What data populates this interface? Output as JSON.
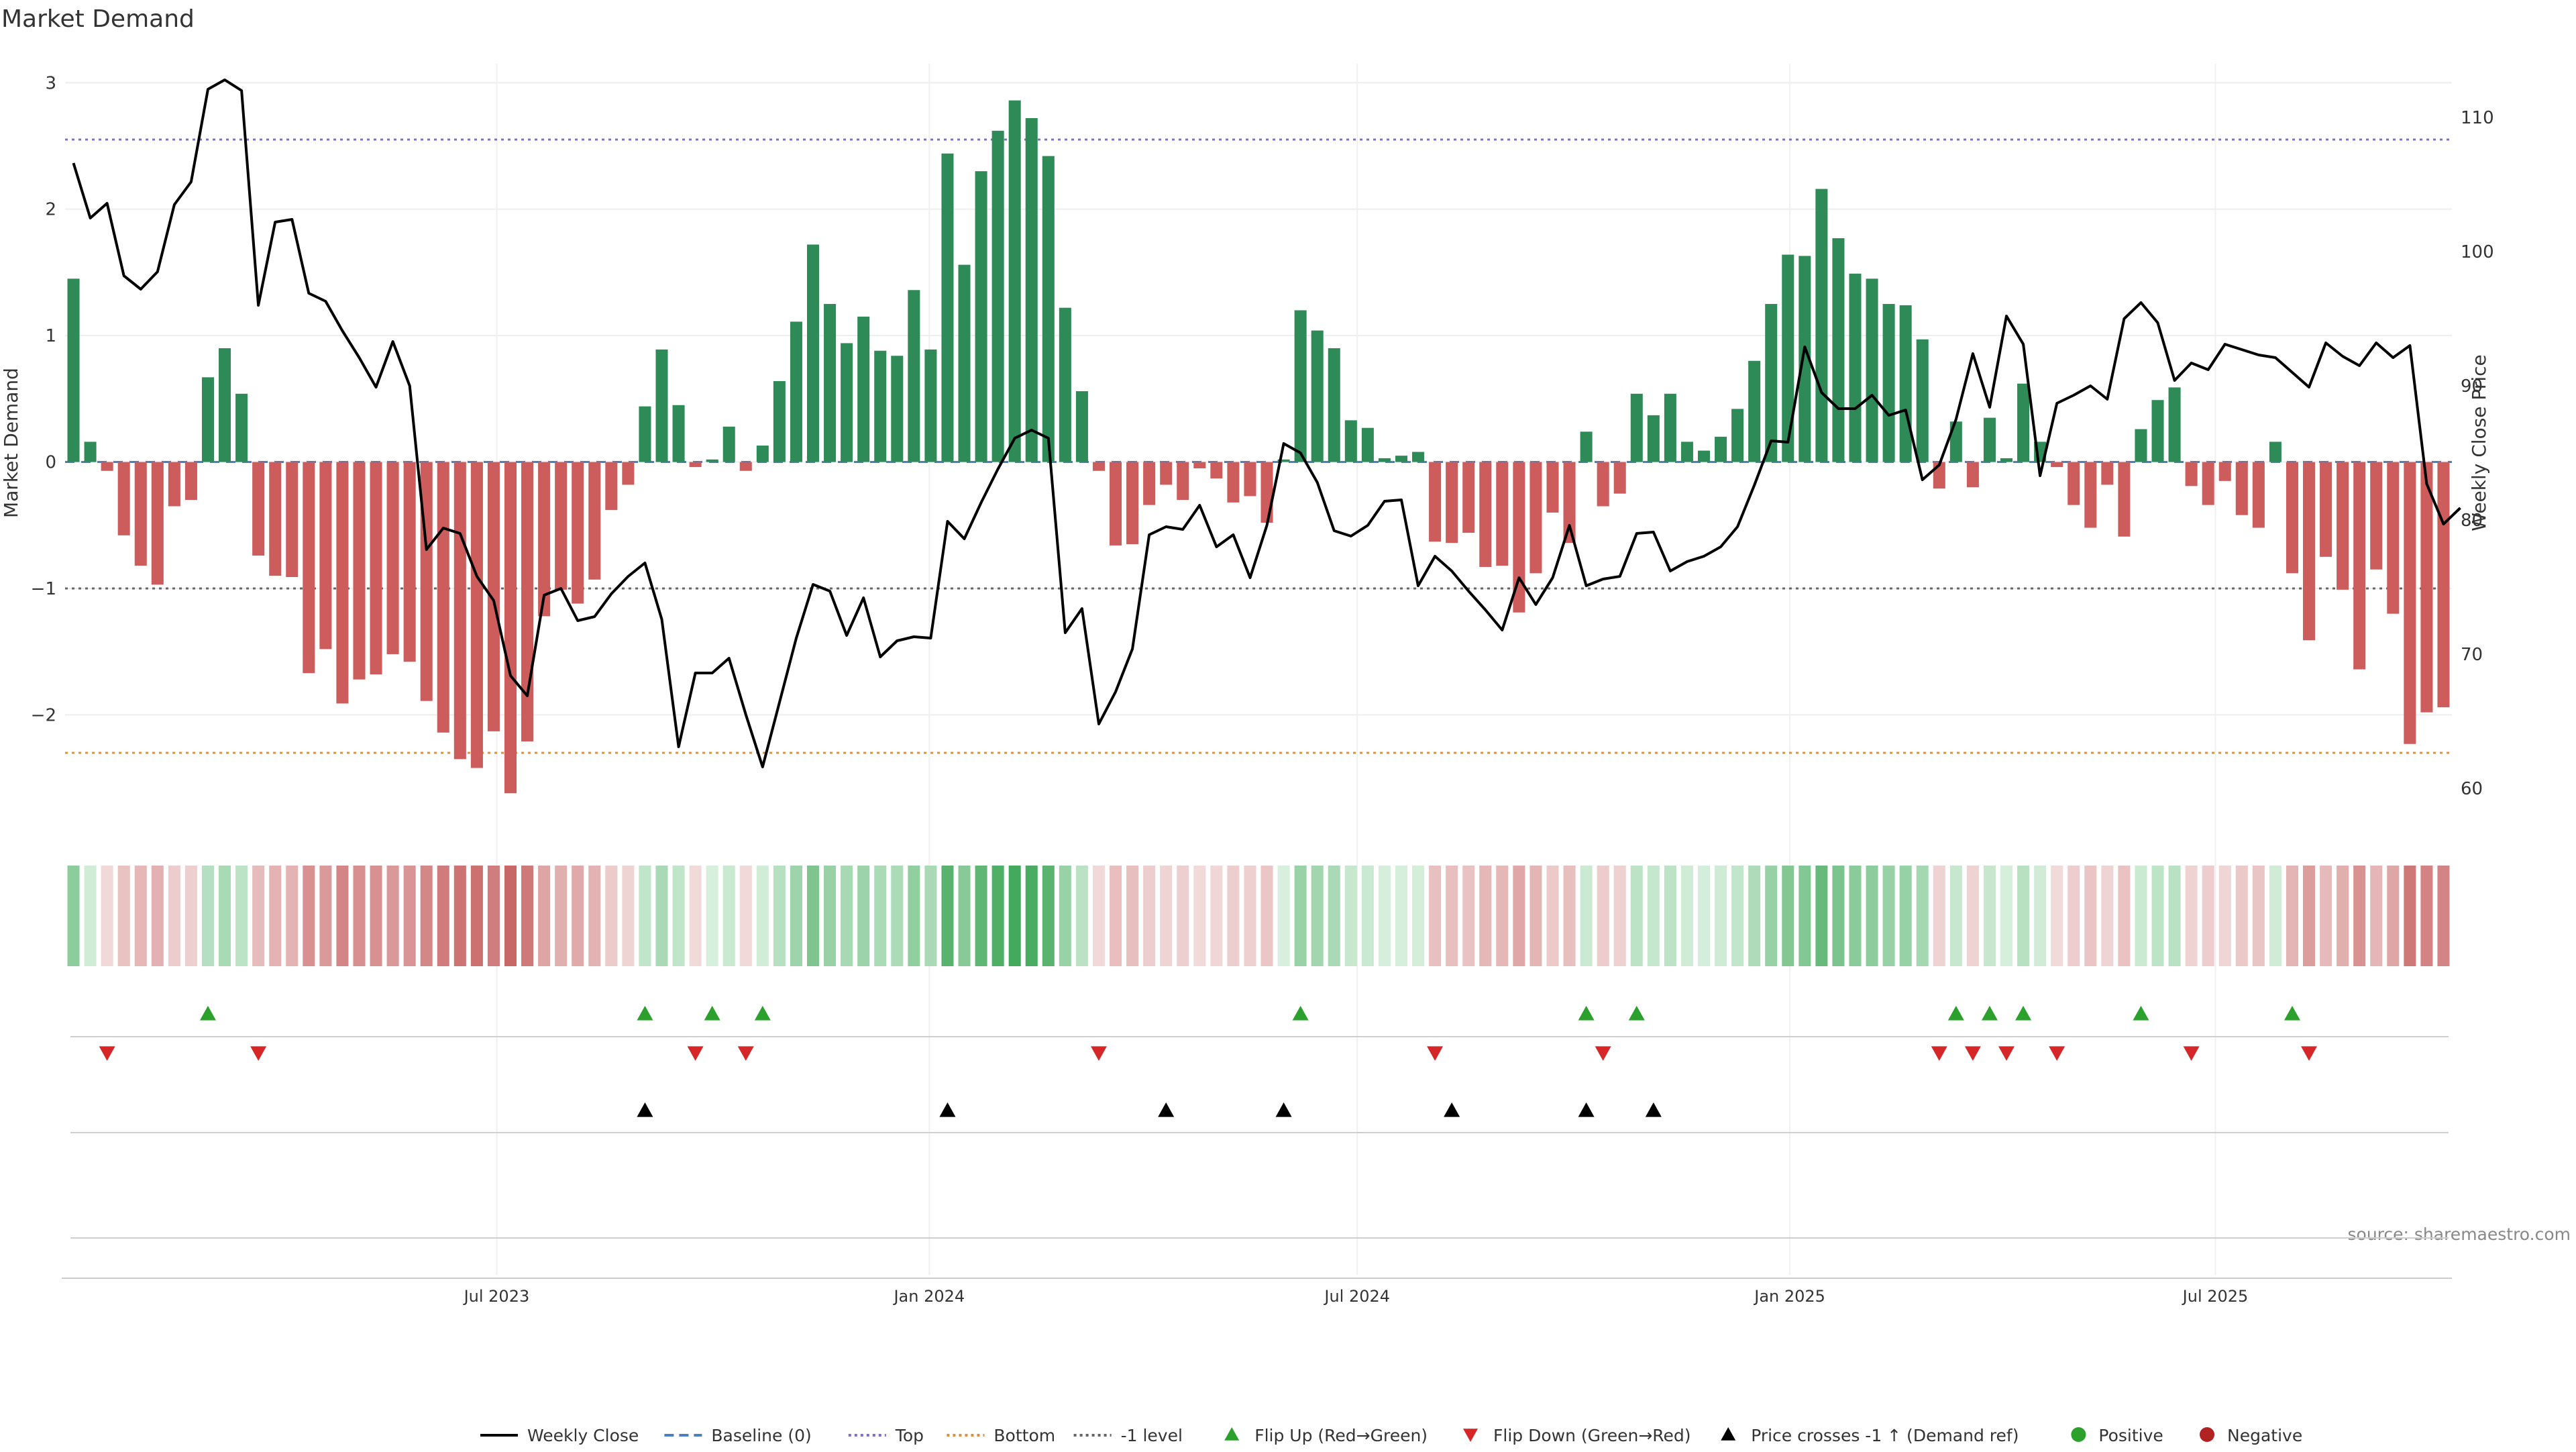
{
  "chart_data": {
    "type": "bar",
    "title": "Market Demand",
    "ylabel": "Market Demand",
    "y2label": "Weekly Close Price",
    "source": "source: sharemaestro.com",
    "ylim": [
      -2.9,
      3.15
    ],
    "y2lim": [
      57,
      114
    ],
    "yticks": [
      -2,
      -1,
      0,
      1,
      2,
      3
    ],
    "y2ticks": [
      60,
      70,
      80,
      90,
      100,
      110
    ],
    "x_start": "2023-01-02",
    "x_end": "2025-10-06",
    "xticks": [
      {
        "date": "2023-07-01",
        "label": "Jul 2023"
      },
      {
        "date": "2024-01-01",
        "label": "Jan 2024"
      },
      {
        "date": "2024-07-01",
        "label": "Jul 2024"
      },
      {
        "date": "2025-01-01",
        "label": "Jan 2025"
      },
      {
        "date": "2025-07-01",
        "label": "Jul 2025"
      }
    ],
    "reference_lines": {
      "top": 2.55,
      "bottom": -2.3,
      "minus_one": -1,
      "baseline": 0
    },
    "colors": {
      "positive": "#2e8b57",
      "negative": "#cd5c5c",
      "price": "#000000",
      "top": "#7b6fd0",
      "bottom": "#e0903a",
      "minus_one": "#666666",
      "baseline": "#4a7fc0",
      "flip_up": "#2ca02c",
      "flip_down": "#d62728",
      "cross": "#000000",
      "positive_dot": "#2ca02c",
      "negative_dot": "#b22222"
    },
    "demand": [
      1.45,
      0.16,
      -0.07,
      -0.58,
      -0.82,
      -0.97,
      -0.35,
      -0.3,
      0.67,
      0.9,
      0.54,
      -0.74,
      -0.9,
      -0.91,
      -1.67,
      -1.48,
      -1.91,
      -1.72,
      -1.68,
      -1.52,
      -1.58,
      -1.89,
      -2.14,
      -2.35,
      -2.42,
      -2.13,
      -2.62,
      -2.21,
      -1.22,
      -1.01,
      -1.12,
      -0.93,
      -0.38,
      -0.18,
      0.44,
      0.89,
      0.45,
      -0.04,
      0.02,
      0.28,
      -0.07,
      0.13,
      0.64,
      1.11,
      1.72,
      1.25,
      0.94,
      1.15,
      0.88,
      0.84,
      1.36,
      0.89,
      2.44,
      1.56,
      2.3,
      2.62,
      2.86,
      2.72,
      2.42,
      1.22,
      0.56,
      -0.07,
      -0.66,
      -0.65,
      -0.34,
      -0.18,
      -0.3,
      -0.05,
      -0.13,
      -0.32,
      -0.27,
      -0.48,
      0.02,
      1.2,
      1.04,
      0.9,
      0.33,
      0.27,
      0.03,
      0.05,
      0.08,
      -0.63,
      -0.64,
      -0.56,
      -0.83,
      -0.82,
      -1.19,
      -0.88,
      -0.4,
      -0.64,
      0.24,
      -0.35,
      -0.25,
      0.54,
      0.37,
      0.54,
      0.16,
      0.09,
      0.2,
      0.42,
      0.8,
      1.25,
      1.64,
      1.63,
      2.16,
      1.77,
      1.49,
      1.45,
      1.25,
      1.24,
      0.97,
      -0.21,
      0.32,
      -0.2,
      0.35,
      0.03,
      0.62,
      0.16,
      -0.04,
      -0.34,
      -0.52,
      -0.18,
      -0.59,
      0.26,
      0.49,
      0.59,
      -0.19,
      -0.34,
      -0.15,
      -0.42,
      -0.52,
      0.16,
      -0.88,
      -1.41,
      -0.75,
      -1.01,
      -1.64,
      -0.85,
      -1.2,
      -2.23,
      -1.98,
      -1.94
    ],
    "price": [
      106.6,
      102.5,
      103.6,
      98.2,
      97.2,
      98.5,
      103.5,
      105.2,
      112.1,
      112.8,
      112.0,
      96.0,
      102.2,
      102.4,
      96.9,
      96.3,
      94.1,
      92.1,
      89.9,
      93.3,
      90.0,
      77.8,
      79.4,
      79.0,
      75.8,
      74.0,
      68.4,
      66.9,
      74.4,
      74.9,
      72.5,
      72.8,
      74.5,
      75.8,
      76.8,
      72.6,
      63.1,
      68.6,
      68.6,
      69.7,
      65.5,
      61.6,
      66.4,
      71.2,
      75.2,
      74.7,
      71.4,
      74.2,
      69.8,
      71.0,
      71.3,
      71.2,
      79.9,
      78.6,
      81.3,
      83.8,
      86.1,
      86.7,
      86.1,
      71.6,
      73.4,
      64.8,
      67.2,
      70.4,
      78.9,
      79.5,
      79.3,
      81.1,
      78.0,
      78.9,
      75.7,
      79.6,
      85.7,
      85.0,
      82.8,
      79.2,
      78.8,
      79.6,
      81.4,
      81.5,
      75.1,
      77.3,
      76.2,
      74.7,
      73.3,
      71.8,
      75.7,
      73.7,
      75.7,
      79.6,
      75.1,
      75.6,
      75.8,
      79.0,
      79.1,
      76.2,
      76.9,
      77.3,
      78.0,
      79.5,
      82.6,
      85.9,
      85.8,
      92.9,
      89.5,
      88.3,
      88.3,
      89.3,
      87.8,
      88.2,
      83.0,
      84.1,
      87.5,
      92.4,
      88.4,
      95.2,
      93.1,
      83.3,
      88.7,
      89.3,
      90.0,
      89.0,
      95.0,
      96.2,
      94.7,
      90.4,
      91.7,
      91.2,
      93.1,
      92.7,
      92.3,
      92.1,
      91.0,
      89.9,
      93.2,
      92.2,
      91.5,
      93.2,
      92.1,
      93.0,
      82.7,
      79.7,
      80.9
    ],
    "flip_up_weeks": [
      8,
      34,
      38,
      41,
      73,
      90,
      93,
      112,
      114,
      116,
      123,
      132
    ],
    "flip_down_weeks": [
      2,
      11,
      37,
      40,
      61,
      81,
      91,
      111,
      113,
      115,
      118,
      126,
      133
    ],
    "cross_weeks": [
      34,
      52,
      65,
      72,
      82,
      90,
      94
    ],
    "legend": [
      {
        "key": "weekly-close",
        "label": "Weekly Close",
        "glyph": "line-solid"
      },
      {
        "key": "baseline",
        "label": "Baseline (0)",
        "glyph": "line-dashed-blue"
      },
      {
        "key": "top",
        "label": "Top",
        "glyph": "line-dotted-purple"
      },
      {
        "key": "bottom",
        "label": "Bottom",
        "glyph": "line-dotted-orange"
      },
      {
        "key": "minus-one",
        "label": "-1 level",
        "glyph": "line-dotted-gray"
      },
      {
        "key": "flip-up",
        "label": "Flip Up (Red→Green)",
        "glyph": "triangle-up-green"
      },
      {
        "key": "flip-down",
        "label": "Flip Down (Green→Red)",
        "glyph": "triangle-down-red"
      },
      {
        "key": "price-cross",
        "label": "Price crosses -1 ↑ (Demand ref)",
        "glyph": "triangle-up-black"
      },
      {
        "key": "positive",
        "label": "Positive",
        "glyph": "dot-green"
      },
      {
        "key": "negative",
        "label": "Negative",
        "glyph": "dot-red"
      }
    ]
  }
}
